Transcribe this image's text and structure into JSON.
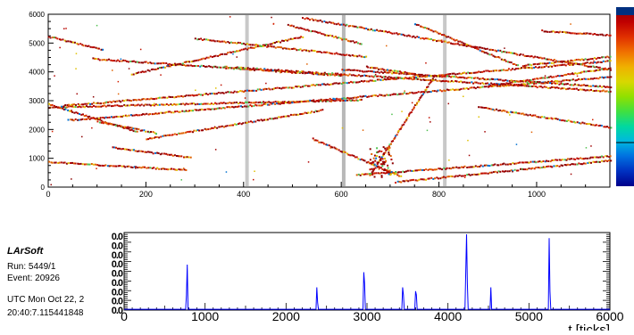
{
  "app": {
    "name": "LArSoft",
    "run_label": "Run:   5449/1",
    "event_label": "Event: 20926",
    "utc_line1": "UTC Mon Oct 22, 2",
    "utc_line2": "20:40:7.115441848"
  },
  "chart_data": [
    {
      "type": "heatmap",
      "title": "",
      "xlabel": "",
      "ylabel": "",
      "xlim": [
        0,
        1150
      ],
      "ylim": [
        0,
        6000
      ],
      "x_ticks": [
        0,
        200,
        400,
        600,
        800,
        1000
      ],
      "y_ticks": [
        0,
        1000,
        2000,
        3000,
        4000,
        5000
      ],
      "y_tick_top_label": "6000",
      "dead_wire_bands": [
        {
          "x": 407,
          "color": "#c8c8c8"
        },
        {
          "x": 605,
          "color": "#b8b8b8"
        },
        {
          "x": 812,
          "color": "#c8c8c8"
        }
      ],
      "tracks": [
        {
          "x": [
            0,
            280
          ],
          "y": [
            900,
            620
          ]
        },
        {
          "x": [
            0,
            180
          ],
          "y": [
            2900,
            1950
          ]
        },
        {
          "x": [
            0,
            110
          ],
          "y": [
            5250,
            4800
          ]
        },
        {
          "x": [
            0,
            640
          ],
          "y": [
            2800,
            3050
          ]
        },
        {
          "x": [
            30,
            1150
          ],
          "y": [
            2850,
            4400
          ]
        },
        {
          "x": [
            40,
            1150
          ],
          "y": [
            2350,
            3850
          ]
        },
        {
          "x": [
            90,
            600
          ],
          "y": [
            4480,
            3900
          ]
        },
        {
          "x": [
            100,
            220
          ],
          "y": [
            2300,
            1900
          ]
        },
        {
          "x": [
            170,
            520
          ],
          "y": [
            3950,
            5250
          ]
        },
        {
          "x": [
            300,
            650
          ],
          "y": [
            5180,
            4550
          ]
        },
        {
          "x": [
            490,
            640
          ],
          "y": [
            5650,
            5000
          ]
        },
        {
          "x": [
            200,
            560
          ],
          "y": [
            1700,
            2700
          ]
        },
        {
          "x": [
            520,
            1150
          ],
          "y": [
            5900,
            4100
          ]
        },
        {
          "x": [
            360,
            1150
          ],
          "y": [
            4200,
            3350
          ]
        },
        {
          "x": [
            600,
            1150
          ],
          "y": [
            4100,
            3500
          ]
        },
        {
          "x": [
            750,
            960
          ],
          "y": [
            5700,
            4250
          ]
        },
        {
          "x": [
            880,
            1150
          ],
          "y": [
            2800,
            2100
          ]
        },
        {
          "x": [
            540,
            720
          ],
          "y": [
            1700,
            400
          ]
        },
        {
          "x": [
            630,
            1150
          ],
          "y": [
            450,
            1100
          ]
        },
        {
          "x": [
            710,
            1150
          ],
          "y": [
            200,
            950
          ]
        },
        {
          "x": [
            660,
            790
          ],
          "y": [
            500,
            3900
          ]
        },
        {
          "x": [
            900,
            1150
          ],
          "y": [
            3550,
            4150
          ]
        },
        {
          "x": [
            970,
            1150
          ],
          "y": [
            4250,
            4550
          ]
        },
        {
          "x": [
            1010,
            1150
          ],
          "y": [
            5450,
            5300
          ]
        },
        {
          "x": [
            650,
            750
          ],
          "y": [
            4200,
            3950
          ]
        },
        {
          "x": [
            130,
            290
          ],
          "y": [
            1400,
            1050
          ]
        }
      ],
      "cluster": {
        "x": 680,
        "y": 900,
        "count": 70
      },
      "colorbar": [
        "#8b0000",
        "#c00000",
        "#e03000",
        "#f07000",
        "#f0b000",
        "#d8d800",
        "#90e000",
        "#40e040",
        "#00d8a0",
        "#00b8e0",
        "#0070e0",
        "#0030c0",
        "#00008b"
      ]
    },
    {
      "type": "line",
      "title": "",
      "xlabel": "t [ticks]",
      "ylabel": "",
      "xlim": [
        0,
        6000
      ],
      "ylim": [
        0,
        1
      ],
      "x_ticks": [
        0,
        1000,
        2000,
        3000,
        4000,
        5000,
        6000
      ],
      "y_tick_labels": [
        "0.0",
        "0.0",
        "0.0",
        "0.0",
        "0.0",
        "0.0",
        "0.0",
        "0.0",
        "0.0"
      ],
      "line_color": "#0000ff",
      "series": [
        {
          "values": [
            [
              0,
              0.01
            ],
            [
              760,
              0.01
            ],
            [
              770,
              0.2
            ],
            [
              780,
              0.6
            ],
            [
              790,
              0.01
            ],
            [
              2370,
              0.01
            ],
            [
              2380,
              0.3
            ],
            [
              2390,
              0.1
            ],
            [
              2400,
              0.01
            ],
            [
              2950,
              0.01
            ],
            [
              2960,
              0.5
            ],
            [
              2970,
              0.35
            ],
            [
              2980,
              0.01
            ],
            [
              3430,
              0.01
            ],
            [
              3440,
              0.3
            ],
            [
              3450,
              0.2
            ],
            [
              3460,
              0.01
            ],
            [
              3590,
              0.01
            ],
            [
              3600,
              0.25
            ],
            [
              3610,
              0.2
            ],
            [
              3620,
              0.01
            ],
            [
              4210,
              0.01
            ],
            [
              4220,
              0.5
            ],
            [
              4230,
              1.0
            ],
            [
              4240,
              0.35
            ],
            [
              4250,
              0.01
            ],
            [
              4520,
              0.01
            ],
            [
              4530,
              0.3
            ],
            [
              4540,
              0.01
            ],
            [
              5240,
              0.01
            ],
            [
              5250,
              0.95
            ],
            [
              5260,
              0.25
            ],
            [
              5270,
              0.01
            ],
            [
              6000,
              0.01
            ]
          ]
        }
      ]
    }
  ]
}
